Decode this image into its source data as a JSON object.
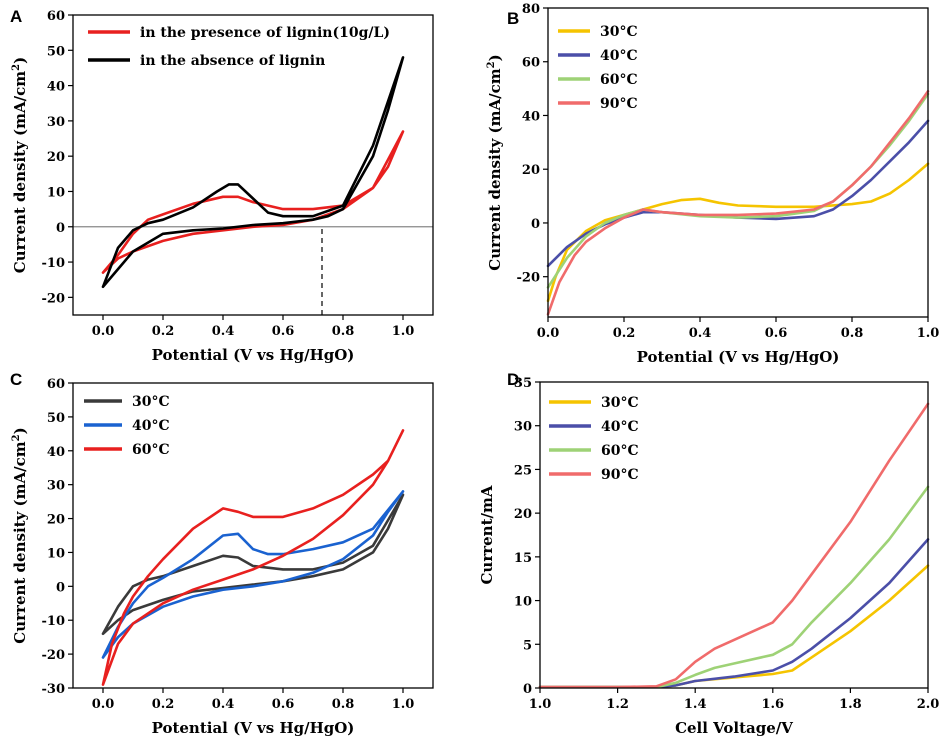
{
  "chart_data": [
    {
      "panel": "A",
      "type": "line",
      "xlabel": "Potential (V vs Hg/HgO)",
      "ylabel": "Current density (mA/cm",
      "ylabel_sup": "2",
      "ylabel_end": ")",
      "xlim": [
        -0.1,
        1.1
      ],
      "ylim": [
        -25,
        60
      ],
      "xticks": [
        "0.0",
        "0.2",
        "0.4",
        "0.6",
        "0.8",
        "1.0"
      ],
      "xtick_values": [
        0,
        0.2,
        0.4,
        0.6,
        0.8,
        1.0
      ],
      "yticks": [
        "-20",
        "-10",
        "0",
        "10",
        "20",
        "30",
        "40",
        "50",
        "60"
      ],
      "ytick_values": [
        -20,
        -10,
        0,
        10,
        20,
        30,
        40,
        50,
        60
      ],
      "hline_y": 0,
      "vline": {
        "x": 0.73,
        "y0": -25,
        "y1": 0
      },
      "series": [
        {
          "name": "in the presence of lignin(10g/L)",
          "color": "#e8201f",
          "x": [
            0.0,
            0.05,
            0.1,
            0.15,
            0.2,
            0.3,
            0.4,
            0.45,
            0.5,
            0.6,
            0.7,
            0.8,
            0.9,
            1.0,
            0.95,
            0.9,
            0.8,
            0.7,
            0.6,
            0.5,
            0.4,
            0.3,
            0.2,
            0.1,
            0.05,
            0.0
          ],
          "y": [
            -13,
            -8,
            -2,
            2,
            3.5,
            6.5,
            8.5,
            8.5,
            7,
            5,
            5,
            6,
            11,
            27,
            17,
            11,
            5,
            2,
            0.5,
            0,
            -1,
            -2,
            -4,
            -7,
            -9,
            -13
          ]
        },
        {
          "name": "in the absence of lignin",
          "color": "#000000",
          "x": [
            0.0,
            0.05,
            0.1,
            0.15,
            0.2,
            0.3,
            0.38,
            0.42,
            0.45,
            0.5,
            0.55,
            0.6,
            0.7,
            0.8,
            0.9,
            1.0,
            0.95,
            0.9,
            0.8,
            0.75,
            0.7,
            0.6,
            0.5,
            0.4,
            0.3,
            0.2,
            0.1,
            0.05,
            0.0
          ],
          "y": [
            -17,
            -6,
            -1,
            1,
            2,
            5.5,
            10,
            12,
            12,
            8,
            4,
            3,
            3,
            6,
            23,
            48,
            33,
            20,
            5,
            3,
            2,
            1,
            0.5,
            -0.5,
            -1,
            -2,
            -7,
            -12,
            -17
          ]
        }
      ]
    },
    {
      "panel": "B",
      "type": "line",
      "xlabel": "Potential (V vs Hg/HgO)",
      "ylabel": "Current density (mA/cm",
      "ylabel_sup": "2",
      "ylabel_end": ")",
      "xlim": [
        0.0,
        1.0
      ],
      "ylim": [
        -35,
        80
      ],
      "xticks": [
        "0.0",
        "0.2",
        "0.4",
        "0.6",
        "0.8",
        "1.0"
      ],
      "xtick_values": [
        0,
        0.2,
        0.4,
        0.6,
        0.8,
        1.0
      ],
      "yticks": [
        "-20",
        "0",
        "20",
        "40",
        "60",
        "80"
      ],
      "ytick_values": [
        -20,
        0,
        20,
        40,
        60,
        80
      ],
      "series": [
        {
          "name": "30°C",
          "color": "#f5c400",
          "x": [
            0.0,
            0.02,
            0.05,
            0.1,
            0.15,
            0.2,
            0.25,
            0.3,
            0.35,
            0.4,
            0.45,
            0.5,
            0.6,
            0.7,
            0.8,
            0.85,
            0.9,
            0.95,
            1.0
          ],
          "y": [
            -29,
            -20,
            -10,
            -3,
            1,
            3,
            5,
            7,
            8.5,
            9,
            7.5,
            6.5,
            6,
            6,
            7,
            8,
            11,
            16,
            22
          ]
        },
        {
          "name": "40°C",
          "color": "#4b4fa8",
          "x": [
            0.0,
            0.05,
            0.1,
            0.15,
            0.2,
            0.25,
            0.3,
            0.4,
            0.5,
            0.6,
            0.7,
            0.75,
            0.8,
            0.85,
            0.9,
            0.95,
            1.0
          ],
          "y": [
            -16,
            -9,
            -4,
            -0.5,
            2,
            4,
            4,
            3,
            2,
            1.5,
            2.5,
            5,
            10,
            16,
            23,
            30,
            38
          ]
        },
        {
          "name": "60°C",
          "color": "#9ed276",
          "x": [
            0.0,
            0.05,
            0.1,
            0.15,
            0.2,
            0.25,
            0.3,
            0.4,
            0.5,
            0.6,
            0.7,
            0.75,
            0.8,
            0.85,
            0.9,
            0.95,
            1.0
          ],
          "y": [
            -24,
            -13,
            -5,
            0,
            3,
            5,
            4,
            2.5,
            2,
            2.5,
            4.5,
            8,
            14,
            21,
            29,
            38,
            48
          ]
        },
        {
          "name": "90°C",
          "color": "#f06b6b",
          "x": [
            0.0,
            0.03,
            0.07,
            0.1,
            0.15,
            0.2,
            0.25,
            0.3,
            0.4,
            0.5,
            0.6,
            0.7,
            0.75,
            0.8,
            0.85,
            0.9,
            0.95,
            1.0
          ],
          "y": [
            -34,
            -22,
            -12,
            -7,
            -2,
            2,
            5,
            4,
            3,
            3,
            3.5,
            5,
            8,
            14,
            21,
            30,
            39,
            49
          ]
        }
      ]
    },
    {
      "panel": "C",
      "type": "line",
      "xlabel": "Potential (V vs Hg/HgO)",
      "ylabel": "Current density (mA/cm",
      "ylabel_sup": "2",
      "ylabel_end": ")",
      "xlim": [
        -0.1,
        1.1
      ],
      "ylim": [
        -30,
        60
      ],
      "xticks": [
        "0.0",
        "0.2",
        "0.4",
        "0.6",
        "0.8",
        "1.0"
      ],
      "xtick_values": [
        0,
        0.2,
        0.4,
        0.6,
        0.8,
        1.0
      ],
      "yticks": [
        "-30",
        "-20",
        "-10",
        "0",
        "10",
        "20",
        "30",
        "40",
        "50",
        "60"
      ],
      "ytick_values": [
        -30,
        -20,
        -10,
        0,
        10,
        20,
        30,
        40,
        50,
        60
      ],
      "series": [
        {
          "name": "30°C",
          "color": "#3a3a3a",
          "x": [
            0.0,
            0.05,
            0.1,
            0.15,
            0.2,
            0.3,
            0.4,
            0.45,
            0.5,
            0.6,
            0.7,
            0.8,
            0.9,
            1.0,
            0.95,
            0.9,
            0.8,
            0.7,
            0.6,
            0.5,
            0.4,
            0.3,
            0.2,
            0.1,
            0.05,
            0.0
          ],
          "y": [
            -14,
            -6,
            0,
            2,
            3,
            6,
            9,
            8.5,
            6,
            5,
            5,
            7,
            12,
            27,
            17,
            10,
            5,
            3,
            1.5,
            0.5,
            -0.5,
            -1.5,
            -4,
            -7,
            -10,
            -14
          ]
        },
        {
          "name": "40°C",
          "color": "#1a62d0",
          "x": [
            0.0,
            0.05,
            0.1,
            0.15,
            0.2,
            0.3,
            0.4,
            0.45,
            0.5,
            0.55,
            0.6,
            0.7,
            0.8,
            0.9,
            1.0,
            0.95,
            0.9,
            0.8,
            0.7,
            0.6,
            0.5,
            0.4,
            0.3,
            0.2,
            0.1,
            0.05,
            0.0
          ],
          "y": [
            -21,
            -12,
            -5,
            0,
            2.5,
            8,
            15,
            15.5,
            11,
            9.5,
            9.5,
            11,
            13,
            17,
            28,
            22,
            15,
            8,
            4,
            1.5,
            0,
            -1,
            -3,
            -6,
            -11,
            -15,
            -21
          ]
        },
        {
          "name": "60°C",
          "color": "#e8201f",
          "x": [
            0.0,
            0.03,
            0.07,
            0.1,
            0.15,
            0.2,
            0.3,
            0.4,
            0.45,
            0.5,
            0.6,
            0.7,
            0.8,
            0.9,
            0.95,
            1.0,
            0.95,
            0.9,
            0.8,
            0.7,
            0.6,
            0.5,
            0.4,
            0.3,
            0.2,
            0.1,
            0.05,
            0.0
          ],
          "y": [
            -29,
            -17,
            -8,
            -3,
            3,
            8,
            17,
            23,
            22,
            20.5,
            20.5,
            23,
            27,
            33,
            37,
            46,
            37,
            30,
            21,
            14,
            9,
            5,
            2,
            -1,
            -5,
            -11,
            -17,
            -29
          ]
        }
      ]
    },
    {
      "panel": "D",
      "type": "line",
      "xlabel": "Cell Voltage/V",
      "ylabel": "Current/mA",
      "ylabel_sup": "",
      "ylabel_end": "",
      "xlim": [
        1.0,
        2.0
      ],
      "ylim": [
        0,
        35
      ],
      "xticks": [
        "1.0",
        "1.2",
        "1.4",
        "1.6",
        "1.8",
        "2.0"
      ],
      "xtick_values": [
        1.0,
        1.2,
        1.4,
        1.6,
        1.8,
        2.0
      ],
      "yticks": [
        "0",
        "5",
        "10",
        "15",
        "20",
        "25",
        "30",
        "35"
      ],
      "ytick_values": [
        0,
        5,
        10,
        15,
        20,
        25,
        30,
        35
      ],
      "series": [
        {
          "name": "30°C",
          "color": "#f5c400",
          "x": [
            1.0,
            1.2,
            1.3,
            1.35,
            1.4,
            1.5,
            1.6,
            1.65,
            1.7,
            1.8,
            1.9,
            2.0
          ],
          "y": [
            0.1,
            0.1,
            0.1,
            0.3,
            0.8,
            1.2,
            1.6,
            2.0,
            3.5,
            6.5,
            10,
            14
          ]
        },
        {
          "name": "40°C",
          "color": "#4b4fa8",
          "x": [
            1.0,
            1.2,
            1.3,
            1.35,
            1.4,
            1.5,
            1.6,
            1.65,
            1.7,
            1.8,
            1.9,
            2.0
          ],
          "y": [
            0.1,
            0.1,
            0.1,
            0.3,
            0.8,
            1.3,
            2.0,
            3.0,
            4.5,
            8,
            12,
            17
          ]
        },
        {
          "name": "60°C",
          "color": "#9ed276",
          "x": [
            1.0,
            1.2,
            1.3,
            1.35,
            1.4,
            1.45,
            1.5,
            1.6,
            1.65,
            1.7,
            1.8,
            1.9,
            2.0
          ],
          "y": [
            0.1,
            0.1,
            0.1,
            0.6,
            1.5,
            2.3,
            2.8,
            3.8,
            5.0,
            7.5,
            12,
            17,
            23
          ]
        },
        {
          "name": "90°C",
          "color": "#f06b6b",
          "x": [
            1.0,
            1.2,
            1.3,
            1.35,
            1.4,
            1.45,
            1.5,
            1.6,
            1.65,
            1.7,
            1.8,
            1.9,
            2.0
          ],
          "y": [
            0.1,
            0.1,
            0.2,
            1.0,
            3.0,
            4.5,
            5.5,
            7.5,
            10,
            13,
            19,
            26,
            32.5
          ]
        }
      ]
    }
  ]
}
